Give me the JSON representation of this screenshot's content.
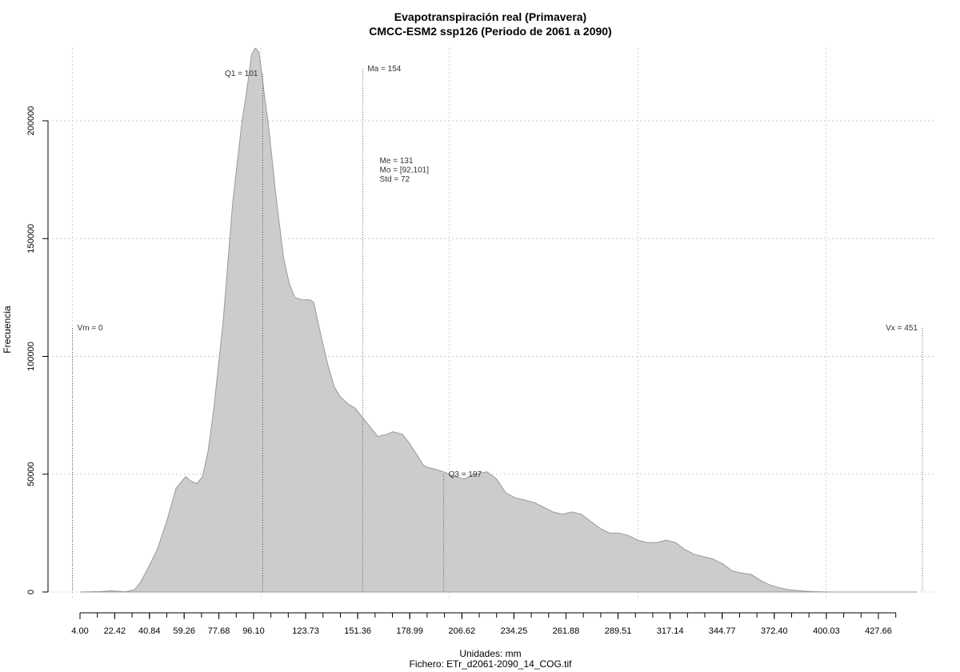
{
  "chart_data": {
    "type": "area",
    "title": "Evapotranspiración real (Primavera)",
    "subtitle": "CMCC-ESM2 ssp126 (Periodo de 2061 a 2090)",
    "xlabel": "Unidades: mm",
    "ylabel": "Frecuencia",
    "footer": "Fichero: ETr_d2061-2090_14_COG.tif",
    "xlim": [
      0,
      455
    ],
    "ylim": [
      0,
      230000
    ],
    "grid": true,
    "fill_color": "#cccccc",
    "line_color": "#999999",
    "x_ticks": [
      "4.00",
      "22.42",
      "40.84",
      "59.26",
      "77.68",
      "96.10",
      "123.73",
      "151.36",
      "178.99",
      "206.62",
      "234.25",
      "261.88",
      "289.51",
      "317.14",
      "344.77",
      "372.40",
      "400.03",
      "427.66"
    ],
    "x_tick_values": [
      4.0,
      22.42,
      40.84,
      59.26,
      77.68,
      96.1,
      123.73,
      151.36,
      178.99,
      206.62,
      234.25,
      261.88,
      289.51,
      317.14,
      344.77,
      372.4,
      400.03,
      427.66
    ],
    "y_ticks": [
      "0",
      "50000",
      "100000",
      "150000",
      "200000"
    ],
    "y_tick_values": [
      0,
      50000,
      100000,
      150000,
      200000
    ],
    "series": [
      {
        "x": [
          4,
          15,
          20,
          24,
          28,
          33,
          36,
          40,
          45,
          50,
          55,
          60,
          63,
          66,
          69,
          72,
          75,
          80,
          85,
          90,
          92,
          95,
          97,
          99,
          100,
          102,
          104,
          106,
          108,
          110,
          112,
          115,
          118,
          122,
          126,
          128,
          131,
          133,
          136,
          139,
          142,
          146,
          150,
          154,
          158,
          162,
          167,
          170,
          175,
          178,
          183,
          186,
          188,
          193,
          197,
          203,
          208,
          213,
          220,
          225,
          230,
          235,
          240,
          245,
          250,
          255,
          260,
          265,
          270,
          275,
          280,
          285,
          290,
          295,
          300,
          305,
          310,
          315,
          320,
          325,
          330,
          335,
          340,
          345,
          350,
          355,
          360,
          365,
          370,
          375,
          380,
          385,
          390,
          395,
          400,
          405,
          410,
          420,
          430,
          440,
          448
        ],
        "y": [
          0,
          200,
          500,
          300,
          100,
          1000,
          4000,
          10000,
          18000,
          30000,
          44000,
          49000,
          47000,
          46000,
          49000,
          60000,
          78000,
          115000,
          165000,
          200000,
          210000,
          228000,
          231000,
          229000,
          223000,
          210000,
          198000,
          183000,
          168000,
          155000,
          142000,
          131000,
          125000,
          124000,
          124000,
          123000,
          112000,
          105000,
          95000,
          87000,
          83000,
          80000,
          78000,
          74000,
          70000,
          66000,
          67000,
          68000,
          67000,
          64000,
          58000,
          54000,
          53000,
          52000,
          51000,
          49000,
          48000,
          50000,
          51000,
          48000,
          42000,
          40000,
          39000,
          38000,
          36000,
          34000,
          33000,
          34000,
          33000,
          30000,
          27000,
          25000,
          25000,
          24000,
          22000,
          21000,
          21000,
          22000,
          21000,
          18000,
          16000,
          15000,
          14000,
          12000,
          9000,
          8000,
          7500,
          5000,
          3000,
          1800,
          1000,
          600,
          300,
          150,
          50,
          0,
          0,
          0,
          0,
          0,
          0
        ]
      }
    ],
    "markers": [
      {
        "label": "Vm = 0",
        "x": 0,
        "top": 112000,
        "label_side": "right"
      },
      {
        "label": "Q1 = 101",
        "x": 101,
        "top": 220000,
        "label_side": "left"
      },
      {
        "label": "Ma = 154",
        "x": 154,
        "top": 222000,
        "label_side": "right"
      },
      {
        "label": "Q3 = 197",
        "x": 197,
        "top": 50000,
        "label_side": "right"
      },
      {
        "label": "Vx = 451",
        "x": 451,
        "top": 112000,
        "label_side": "left"
      }
    ],
    "stats": {
      "anchor": {
        "x": 163,
        "y": 182000
      },
      "lines": [
        "Me = 131",
        "Mo = [92,101]",
        "Std = 72"
      ]
    }
  }
}
